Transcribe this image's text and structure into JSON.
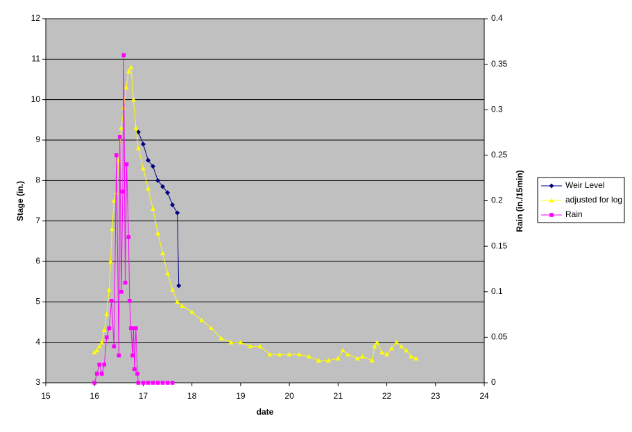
{
  "chart_data": {
    "type": "line",
    "x_label": "date",
    "y_label": "Stage (in.)",
    "y2_label": "Rain (in./15min)",
    "xlim": [
      15,
      24
    ],
    "xticks": [
      15,
      16,
      17,
      18,
      19,
      20,
      21,
      22,
      23,
      24
    ],
    "ylim": [
      3,
      12
    ],
    "yticks": [
      3,
      4,
      5,
      6,
      7,
      8,
      9,
      10,
      11,
      12
    ],
    "y2lim": [
      0,
      0.4
    ],
    "y2ticks": [
      0,
      0.05,
      0.1,
      0.15,
      0.2,
      0.25,
      0.3,
      0.35,
      0.4
    ],
    "grid": true,
    "legend": "right",
    "background": "#c0c0c0",
    "series": [
      {
        "name": "Weir Level",
        "color": "#000080",
        "marker": "diamond",
        "x": [
          16.9,
          17.0,
          17.1,
          17.2,
          17.3,
          17.4,
          17.5,
          17.6,
          17.7,
          17.73
        ],
        "values": [
          9.2,
          8.9,
          8.5,
          8.35,
          8.0,
          7.85,
          7.7,
          7.4,
          7.2,
          5.4
        ]
      },
      {
        "name": "adjusted for log",
        "color": "#ffff00",
        "marker": "triangle",
        "x": [
          16.0,
          16.05,
          16.1,
          16.15,
          16.2,
          16.25,
          16.3,
          16.33,
          16.36,
          16.4,
          16.45,
          16.5,
          16.55,
          16.6,
          16.65,
          16.7,
          16.75,
          16.8,
          16.85,
          16.9,
          17.0,
          17.1,
          17.2,
          17.3,
          17.4,
          17.5,
          17.6,
          17.7,
          17.8,
          18.0,
          18.2,
          18.4,
          18.6,
          18.8,
          19.0,
          19.2,
          19.4,
          19.6,
          19.8,
          20.0,
          20.2,
          20.4,
          20.6,
          20.8,
          21.0,
          21.1,
          21.2,
          21.4,
          21.5,
          21.7,
          21.75,
          21.8,
          21.9,
          22.0,
          22.1,
          22.2,
          22.3,
          22.4,
          22.5,
          22.6
        ],
        "values": [
          3.75,
          3.8,
          3.9,
          4.0,
          4.3,
          4.7,
          5.3,
          6.0,
          6.8,
          7.5,
          7.7,
          8.5,
          9.3,
          9.8,
          10.3,
          10.7,
          10.8,
          10.0,
          9.3,
          8.8,
          8.3,
          7.8,
          7.3,
          6.7,
          6.2,
          5.7,
          5.3,
          5.0,
          4.9,
          4.75,
          4.55,
          4.35,
          4.1,
          4.0,
          4.0,
          3.9,
          3.9,
          3.7,
          3.7,
          3.7,
          3.7,
          3.65,
          3.55,
          3.55,
          3.6,
          3.8,
          3.7,
          3.6,
          3.65,
          3.55,
          3.9,
          4.0,
          3.75,
          3.7,
          3.85,
          4.0,
          3.9,
          3.8,
          3.65,
          3.6
        ]
      },
      {
        "name": "Rain",
        "color": "#ff00ff",
        "marker": "square",
        "axis": "y2",
        "x": [
          16.0,
          16.05,
          16.1,
          16.15,
          16.2,
          16.25,
          16.3,
          16.35,
          16.4,
          16.45,
          16.5,
          16.52,
          16.55,
          16.58,
          16.6,
          16.63,
          16.66,
          16.7,
          16.72,
          16.75,
          16.78,
          16.8,
          16.82,
          16.85,
          16.88,
          16.9,
          17.0,
          17.1,
          17.2,
          17.3,
          17.4,
          17.5,
          17.6
        ],
        "values": [
          0,
          0.01,
          0.02,
          0.01,
          0.02,
          0.05,
          0.06,
          0.09,
          0.04,
          0.25,
          0.03,
          0.27,
          0.1,
          0.21,
          0.36,
          0.11,
          0.24,
          0.16,
          0.09,
          0.06,
          0.03,
          0.06,
          0.015,
          0.06,
          0.01,
          0,
          0,
          0,
          0,
          0,
          0,
          0,
          0
        ]
      }
    ]
  }
}
